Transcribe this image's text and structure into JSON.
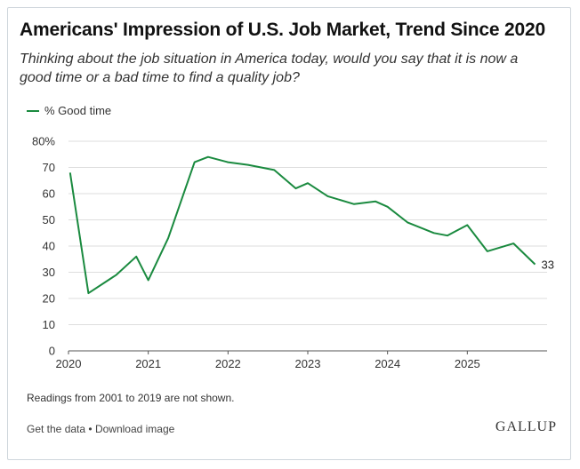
{
  "colors": {
    "series": "#1a8a3f",
    "grid": "#dedede",
    "axis": "#555555"
  },
  "header": {
    "title": "Americans' Impression of U.S. Job Market, Trend Since 2020",
    "subtitle": "Thinking about the job situation in America today, would you say that it is now a good time or a bad time to find a quality job?"
  },
  "note": "Readings from 2001 to 2019 are not shown.",
  "footer": {
    "get_data": "Get the data",
    "separator": "•",
    "download": "Download image",
    "logo": "GALLUP"
  },
  "chart_data": {
    "type": "line",
    "title": "Americans' Impression of U.S. Job Market, Trend Since 2020",
    "xlabel": "",
    "ylabel": "",
    "xlim": [
      2020,
      2026
    ],
    "ylim": [
      0,
      80
    ],
    "y_ticks": [
      0,
      10,
      20,
      30,
      40,
      50,
      60,
      70,
      80
    ],
    "y_tick_labels": [
      "0",
      "10",
      "20",
      "30",
      "40",
      "50",
      "60",
      "70",
      "80%"
    ],
    "x_ticks": [
      2020,
      2021,
      2022,
      2023,
      2024,
      2025
    ],
    "x_tick_labels": [
      "2020",
      "2021",
      "2022",
      "2023",
      "2024",
      "2025"
    ],
    "grid": true,
    "legend": "top-left",
    "end_label": "33",
    "series": [
      {
        "name": "% Good time",
        "x": [
          2020.02,
          2020.25,
          2020.6,
          2020.85,
          2021.0,
          2021.25,
          2021.58,
          2021.75,
          2022.0,
          2022.25,
          2022.58,
          2022.85,
          2023.0,
          2023.25,
          2023.58,
          2023.85,
          2024.0,
          2024.25,
          2024.58,
          2024.75,
          2025.0,
          2025.25,
          2025.58,
          2025.85
        ],
        "values": [
          68,
          22,
          29,
          36,
          27,
          43,
          72,
          74,
          72,
          71,
          69,
          62,
          64,
          59,
          56,
          57,
          55,
          49,
          45,
          44,
          48,
          38,
          41,
          33
        ]
      }
    ]
  }
}
